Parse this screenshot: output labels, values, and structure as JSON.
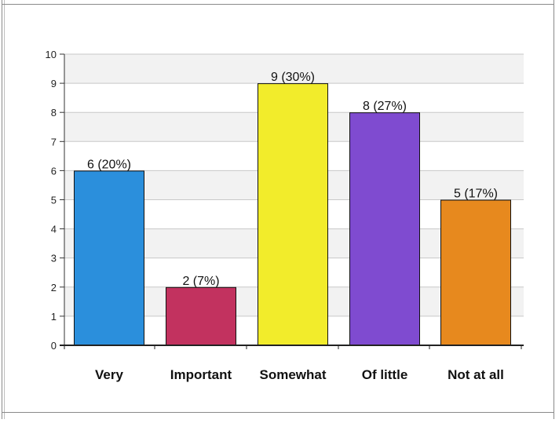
{
  "chart_data": {
    "type": "bar",
    "title": "",
    "xlabel": "",
    "ylabel": "",
    "categories": [
      "Very",
      "Important",
      "Somewhat",
      "Of little",
      "Not at all"
    ],
    "values": [
      6,
      2,
      9,
      8,
      5
    ],
    "data_labels": [
      "6 (20%)",
      "2 (7%)",
      "9 (30%)",
      "8 (27%)",
      "5 (17%)"
    ],
    "colors": [
      "#2b8fdc",
      "#c2325f",
      "#f2ec2b",
      "#7f4bd0",
      "#e7891e"
    ],
    "ylim": [
      0,
      10
    ],
    "yticks": [
      0,
      1,
      2,
      3,
      4,
      5,
      6,
      7,
      8,
      9,
      10
    ],
    "ytick_labels": [
      "0",
      "1",
      "2",
      "3",
      "4",
      "5",
      "6",
      "7",
      "8",
      "9",
      "10"
    ],
    "grid": true,
    "legend": "none"
  }
}
